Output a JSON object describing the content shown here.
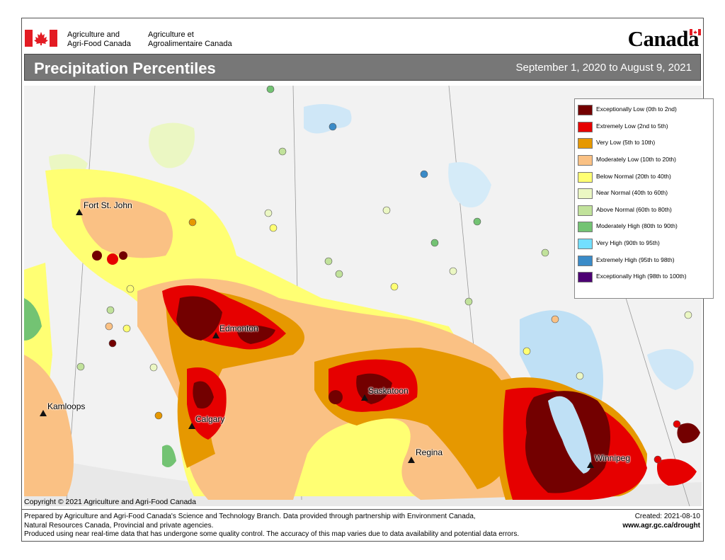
{
  "header": {
    "department_en_line1": "Agriculture and",
    "department_en_line2": "Agri-Food Canada",
    "department_fr_line1": "Agriculture et",
    "department_fr_line2": "Agroalimentaire Canada",
    "wordmark": "Canada"
  },
  "titlebar": {
    "title": "Precipitation Percentiles",
    "date_range": "September 1, 2020 to August 9, 2021"
  },
  "legend": {
    "items": [
      {
        "label": "Exceptionally Low (0th to 2nd)",
        "color": "#730000"
      },
      {
        "label": "Extremely Low (2nd to 5th)",
        "color": "#e60000"
      },
      {
        "label": "Very Low (5th to 10th)",
        "color": "#e69800"
      },
      {
        "label": "Moderately Low (10th to 20th)",
        "color": "#fac184"
      },
      {
        "label": "Below Normal (20th to 40th)",
        "color": "#ffff73"
      },
      {
        "label": "Near Normal (40th to 60th)",
        "color": "#ebf7c3"
      },
      {
        "label": "Above Normal (60th to 80th)",
        "color": "#c1e29b"
      },
      {
        "label": "Moderately High (80th to 90th)",
        "color": "#73c373"
      },
      {
        "label": "Very High (90th to 95th)",
        "color": "#73dfff"
      },
      {
        "label": "Extremely High (95th to 98th)",
        "color": "#3a8bc8"
      },
      {
        "label": "Exceptionally High (98th to 100th)",
        "color": "#4c0073"
      }
    ]
  },
  "cities": [
    {
      "name": "Fort St. John"
    },
    {
      "name": "Edmonton"
    },
    {
      "name": "Kamloops"
    },
    {
      "name": "Calgary"
    },
    {
      "name": "Saskatoon"
    },
    {
      "name": "Regina"
    },
    {
      "name": "Winnipeg"
    }
  ],
  "footer": {
    "copyright": "Copyright © 2021 Agriculture and Agri-Food Canada",
    "credits_line1": "Prepared by Agriculture and Agri-Food Canada's Science and Technology Branch. Data provided through partnership with Environment Canada,",
    "credits_line2": "Natural Resources Canada, Provincial and private agencies.",
    "credits_line3": "Produced using near real-time data that has undergone some quality control. The accuracy of this map varies due to data availability and potential data errors.",
    "created": "Created: 2021-08-10",
    "website": "www.agr.gc.ca/drought"
  }
}
